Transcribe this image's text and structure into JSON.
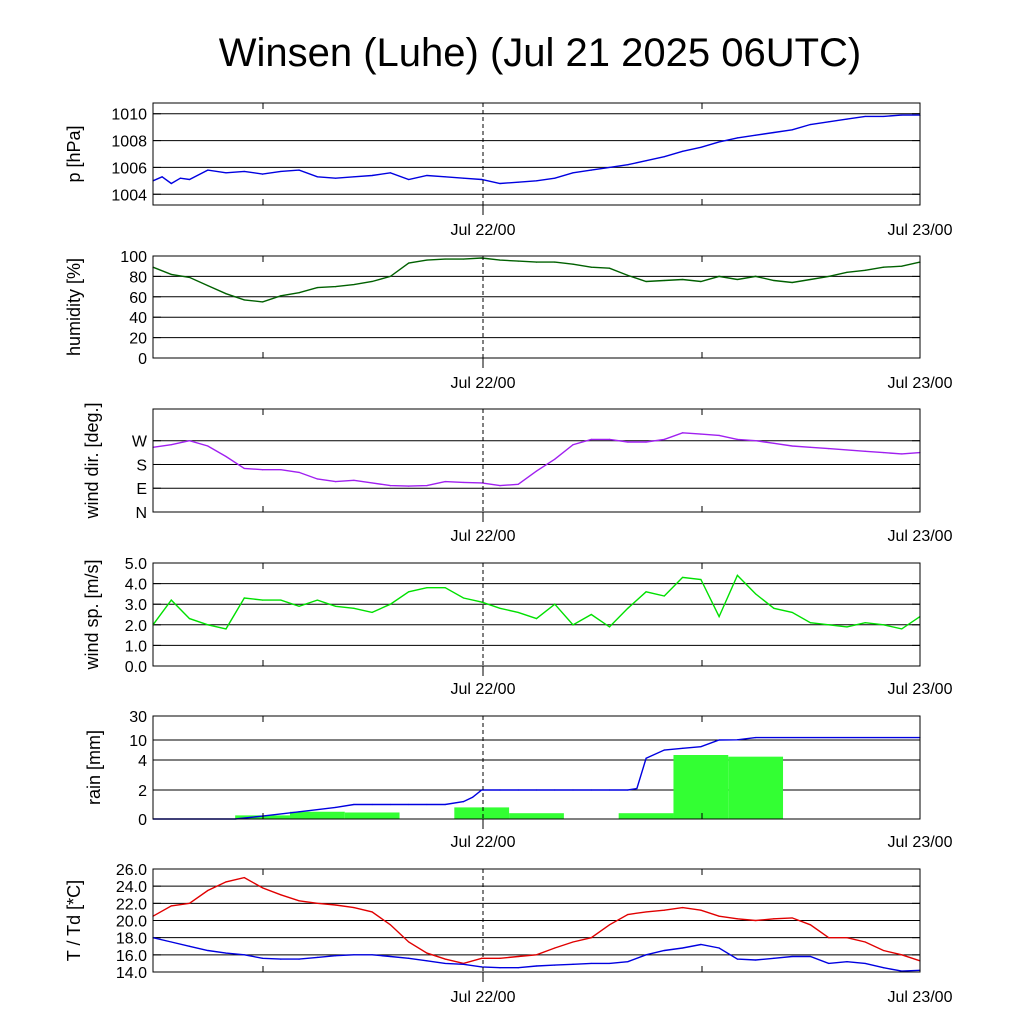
{
  "title": "Winsen (Luhe) (Jul 21 2025 06UTC)",
  "x_ticks": [
    "Jul 22/00",
    "Jul 23/00"
  ],
  "colors": {
    "pressure": "#0000e0",
    "humidity": "#006000",
    "wind_dir": "#a020f0",
    "wind_speed": "#00e000",
    "rain_bars": "#33ff33",
    "rain_sum": "#0000e0",
    "temperature": "#e00000",
    "dewpoint": "#0000e0"
  },
  "chart_data": [
    {
      "type": "line",
      "id": "pressure",
      "ylabel": "p [hPa]",
      "ylim": [
        1003.2,
        1010.8
      ],
      "yticks": [
        1004,
        1006,
        1008,
        1010
      ],
      "ytick_labels": [
        "1004",
        "1006",
        "1008",
        "1010"
      ],
      "grid": true,
      "x_unit": "hours since Jul 21 06UTC",
      "xlim": [
        0,
        42
      ],
      "series": [
        {
          "x": [
            0,
            0.5,
            1,
            1.5,
            2,
            3,
            4,
            5,
            6,
            7,
            8,
            9,
            10,
            11,
            12,
            13,
            14,
            15,
            16,
            17,
            18,
            19,
            20,
            21,
            22,
            23,
            24,
            25,
            26,
            27,
            28,
            29,
            30,
            31,
            32,
            33,
            34,
            35,
            36,
            37,
            38,
            39,
            40,
            41,
            42
          ],
          "y": [
            1005.0,
            1005.3,
            1004.8,
            1005.2,
            1005.1,
            1005.8,
            1005.6,
            1005.7,
            1005.5,
            1005.7,
            1005.8,
            1005.3,
            1005.2,
            1005.3,
            1005.4,
            1005.6,
            1005.1,
            1005.4,
            1005.3,
            1005.2,
            1005.1,
            1004.8,
            1004.9,
            1005.0,
            1005.2,
            1005.6,
            1005.8,
            1006.0,
            1006.2,
            1006.5,
            1006.8,
            1007.2,
            1007.5,
            1007.9,
            1008.2,
            1008.4,
            1008.6,
            1008.8,
            1009.2,
            1009.4,
            1009.6,
            1009.8,
            1009.8,
            1009.9,
            1009.9
          ]
        }
      ]
    },
    {
      "type": "line",
      "id": "humidity",
      "ylabel": "humidity [%]",
      "ylim": [
        0,
        100
      ],
      "yticks": [
        0,
        20,
        40,
        60,
        80,
        100
      ],
      "ytick_labels": [
        "0",
        "20",
        "40",
        "60",
        "80",
        "100"
      ],
      "grid": true,
      "xlim": [
        0,
        42
      ],
      "series": [
        {
          "x": [
            0,
            1,
            2,
            3,
            4,
            5,
            6,
            7,
            8,
            9,
            10,
            11,
            12,
            13,
            14,
            15,
            16,
            17,
            18,
            19,
            20,
            21,
            22,
            23,
            24,
            25,
            26,
            27,
            28,
            29,
            30,
            31,
            32,
            33,
            34,
            35,
            36,
            37,
            38,
            39,
            40,
            41,
            42
          ],
          "y": [
            89,
            82,
            79,
            71,
            63,
            57,
            55,
            61,
            64,
            69,
            70,
            72,
            75,
            80,
            93,
            96,
            97,
            97,
            98,
            96,
            95,
            94,
            94,
            92,
            89,
            88,
            81,
            75,
            76,
            77,
            75,
            80,
            77,
            80,
            76,
            74,
            77,
            80,
            84,
            86,
            89,
            90,
            94
          ]
        }
      ]
    },
    {
      "type": "line",
      "id": "wind_dir",
      "ylabel": "wind dir. [deg.]",
      "ylim": [
        0,
        390
      ],
      "yticks": [
        0,
        90,
        180,
        270
      ],
      "ytick_labels": [
        "N",
        "E",
        "S",
        "W"
      ],
      "grid": true,
      "xlim": [
        0,
        42
      ],
      "series": [
        {
          "x": [
            0,
            1,
            2,
            3,
            4,
            5,
            6,
            7,
            8,
            9,
            10,
            11,
            12,
            13,
            14,
            15,
            16,
            17,
            18,
            19,
            20,
            21,
            22,
            23,
            24,
            25,
            26,
            27,
            28,
            29,
            30,
            31,
            32,
            33,
            34,
            35,
            36,
            37,
            38,
            39,
            40,
            41,
            42
          ],
          "y": [
            245,
            255,
            270,
            250,
            210,
            165,
            160,
            160,
            150,
            125,
            115,
            120,
            110,
            100,
            98,
            100,
            115,
            112,
            110,
            100,
            105,
            155,
            200,
            255,
            275,
            275,
            265,
            265,
            275,
            300,
            295,
            290,
            275,
            270,
            260,
            250,
            245,
            240,
            235,
            230,
            225,
            220,
            225
          ]
        }
      ]
    },
    {
      "type": "line",
      "id": "wind_speed",
      "ylabel": "wind sp. [m/s]",
      "ylim": [
        0,
        5
      ],
      "yticks": [
        0,
        1,
        2,
        3,
        4,
        5
      ],
      "ytick_labels": [
        "0.0",
        "1.0",
        "2.0",
        "3.0",
        "4.0",
        "5.0"
      ],
      "grid": true,
      "xlim": [
        0,
        42
      ],
      "series": [
        {
          "x": [
            0,
            1,
            2,
            3,
            4,
            5,
            6,
            7,
            8,
            9,
            10,
            11,
            12,
            13,
            14,
            15,
            16,
            17,
            18,
            19,
            20,
            21,
            22,
            23,
            24,
            25,
            26,
            27,
            28,
            29,
            30,
            31,
            32,
            33,
            34,
            35,
            36,
            37,
            38,
            39,
            40,
            41,
            42
          ],
          "y": [
            2.0,
            3.2,
            2.3,
            2.0,
            1.8,
            3.3,
            3.2,
            3.2,
            2.9,
            3.2,
            2.9,
            2.8,
            2.6,
            3.0,
            3.6,
            3.8,
            3.8,
            3.3,
            3.1,
            2.8,
            2.6,
            2.3,
            3.0,
            2.0,
            2.5,
            1.9,
            2.8,
            3.6,
            3.4,
            4.3,
            4.2,
            2.4,
            4.4,
            3.5,
            2.8,
            2.6,
            2.1,
            2.0,
            1.9,
            2.1,
            2.0,
            1.8,
            2.4
          ]
        }
      ]
    },
    {
      "type": "bar",
      "id": "rain",
      "ylabel": "rain [mm]",
      "ylim": [
        0,
        30
      ],
      "yticks": [
        0,
        2,
        4,
        10,
        30
      ],
      "ytick_labels": [
        "0",
        "2",
        "4",
        "10",
        "30"
      ],
      "grid": true,
      "scale": "nonlinear",
      "xlim": [
        0,
        42
      ],
      "bars": [
        {
          "x0": 4.5,
          "x1": 7.5,
          "value": 0.25
        },
        {
          "x0": 7.5,
          "x1": 10.5,
          "value": 0.5
        },
        {
          "x0": 10.5,
          "x1": 13.5,
          "value": 0.45
        },
        {
          "x0": 16.5,
          "x1": 19.5,
          "value": 0.8
        },
        {
          "x0": 19.5,
          "x1": 22.5,
          "value": 0.4
        },
        {
          "x0": 25.5,
          "x1": 28.5,
          "value": 0.4
        },
        {
          "x0": 28.5,
          "x1": 31.5,
          "value": 5.5
        },
        {
          "x0": 31.5,
          "x1": 34.5,
          "value": 5.0
        }
      ],
      "series": [
        {
          "x": [
            0,
            4.5,
            6,
            8,
            10,
            11,
            12,
            13,
            14,
            15,
            16,
            17,
            17.5,
            18,
            19,
            20,
            21,
            22,
            23,
            24,
            25,
            26,
            26.5,
            27,
            28,
            29,
            30,
            31,
            32,
            33,
            42
          ],
          "y": [
            0,
            0,
            0.2,
            0.5,
            0.8,
            1.0,
            1.0,
            1.0,
            1.0,
            1.0,
            1.0,
            1.2,
            1.5,
            2.0,
            2.0,
            2.0,
            2.0,
            2.0,
            2.0,
            2.0,
            2.0,
            2.0,
            2.1,
            4.5,
            7.0,
            7.5,
            8.0,
            10.0,
            10.2,
            12.0,
            12.0
          ]
        }
      ]
    },
    {
      "type": "line",
      "id": "temperature",
      "ylabel": "T / Td [*C]",
      "ylim": [
        14,
        26
      ],
      "yticks": [
        14,
        16,
        18,
        20,
        22,
        24,
        26
      ],
      "ytick_labels": [
        "14.0",
        "16.0",
        "18.0",
        "20.0",
        "22.0",
        "24.0",
        "26.0"
      ],
      "grid": true,
      "xlim": [
        0,
        42
      ],
      "series": [
        {
          "name": "T",
          "x": [
            0,
            1,
            2,
            3,
            4,
            5,
            6,
            7,
            8,
            9,
            10,
            11,
            12,
            13,
            14,
            15,
            16,
            17,
            18,
            19,
            20,
            21,
            22,
            23,
            24,
            25,
            26,
            27,
            28,
            29,
            30,
            31,
            32,
            33,
            34,
            35,
            36,
            37,
            38,
            39,
            40,
            41,
            42
          ],
          "y": [
            20.5,
            21.7,
            22.0,
            23.5,
            24.5,
            25.0,
            23.8,
            23.0,
            22.3,
            22.0,
            21.8,
            21.5,
            21.0,
            19.5,
            17.5,
            16.2,
            15.5,
            15.0,
            15.6,
            15.6,
            15.8,
            16.0,
            16.8,
            17.5,
            18.0,
            19.5,
            20.7,
            21.0,
            21.2,
            21.5,
            21.2,
            20.5,
            20.2,
            20.0,
            20.2,
            20.3,
            19.5,
            18.0,
            18.0,
            17.5,
            16.5,
            16.0,
            15.3
          ]
        },
        {
          "name": "Td",
          "x": [
            0,
            1,
            2,
            3,
            4,
            5,
            6,
            7,
            8,
            9,
            10,
            11,
            12,
            13,
            14,
            15,
            16,
            17,
            18,
            19,
            20,
            21,
            22,
            23,
            24,
            25,
            26,
            27,
            28,
            29,
            30,
            31,
            32,
            33,
            34,
            35,
            36,
            37,
            38,
            39,
            40,
            41,
            42
          ],
          "y": [
            18.0,
            17.5,
            17.0,
            16.5,
            16.2,
            16.0,
            15.6,
            15.5,
            15.5,
            15.7,
            15.9,
            16.0,
            16.0,
            15.8,
            15.6,
            15.3,
            15.0,
            14.9,
            14.6,
            14.5,
            14.5,
            14.7,
            14.8,
            14.9,
            15.0,
            15.0,
            15.2,
            16.0,
            16.5,
            16.8,
            17.2,
            16.8,
            15.5,
            15.4,
            15.6,
            15.8,
            15.8,
            15.0,
            15.2,
            15.0,
            14.5,
            14.1,
            14.2
          ]
        }
      ]
    }
  ]
}
